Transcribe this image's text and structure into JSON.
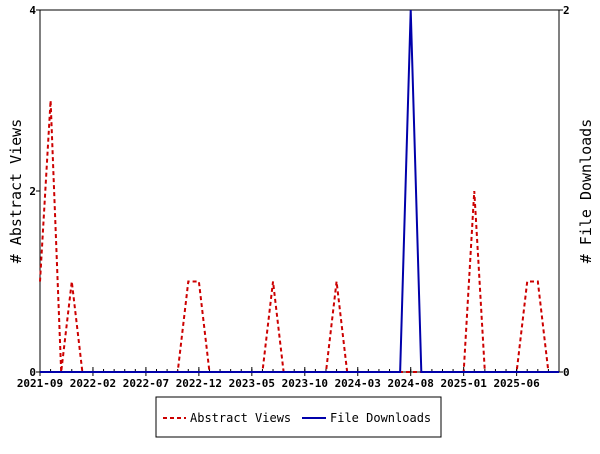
{
  "chart_data": {
    "type": "line",
    "x_labels": [
      "2021-09",
      "2022-02",
      "2022-07",
      "2022-12",
      "2023-05",
      "2023-10",
      "2024-03",
      "2024-08",
      "2025-01",
      "2025-06"
    ],
    "x_range": [
      "2021-09",
      "2025-10"
    ],
    "y_left": {
      "label": "# Abstract Views",
      "range": [
        0,
        4
      ],
      "ticks": [
        "0",
        "2",
        "4"
      ]
    },
    "y_right": {
      "label": "# File Downloads",
      "range": [
        0,
        2
      ],
      "ticks": [
        "0",
        "2"
      ]
    },
    "grid": false,
    "legend_position": "bottom-center",
    "series": [
      {
        "name": "Abstract Views",
        "axis": "left",
        "color": "#cc0000",
        "style": "dashed",
        "x": [
          "2021-09",
          "2021-10",
          "2021-11",
          "2021-12",
          "2022-01",
          "2022-02",
          "2022-03",
          "2022-04",
          "2022-05",
          "2022-06",
          "2022-07",
          "2022-08",
          "2022-09",
          "2022-10",
          "2022-11",
          "2022-12",
          "2023-01",
          "2023-02",
          "2023-03",
          "2023-04",
          "2023-05",
          "2023-06",
          "2023-07",
          "2023-08",
          "2023-09",
          "2023-10",
          "2023-11",
          "2023-12",
          "2024-01",
          "2024-02",
          "2024-03",
          "2024-04",
          "2024-05",
          "2024-06",
          "2024-07",
          "2024-08",
          "2024-09",
          "2024-10",
          "2024-11",
          "2024-12",
          "2025-01",
          "2025-02",
          "2025-03",
          "2025-04",
          "2025-05",
          "2025-06",
          "2025-07",
          "2025-08",
          "2025-09",
          "2025-10"
        ],
        "values": [
          1,
          3,
          0,
          1,
          0,
          0,
          0,
          0,
          0,
          0,
          0,
          0,
          0,
          0,
          1,
          1,
          0,
          0,
          0,
          0,
          0,
          0,
          1,
          0,
          0,
          0,
          0,
          0,
          1,
          0,
          0,
          0,
          0,
          0,
          0,
          0,
          0,
          0,
          0,
          0,
          0,
          2,
          0,
          0,
          0,
          0,
          1,
          1,
          0,
          0
        ]
      },
      {
        "name": "File Downloads",
        "axis": "right",
        "color": "#0000aa",
        "style": "solid",
        "x": [
          "2021-09",
          "2021-10",
          "2021-11",
          "2021-12",
          "2022-01",
          "2022-02",
          "2022-03",
          "2022-04",
          "2022-05",
          "2022-06",
          "2022-07",
          "2022-08",
          "2022-09",
          "2022-10",
          "2022-11",
          "2022-12",
          "2023-01",
          "2023-02",
          "2023-03",
          "2023-04",
          "2023-05",
          "2023-06",
          "2023-07",
          "2023-08",
          "2023-09",
          "2023-10",
          "2023-11",
          "2023-12",
          "2024-01",
          "2024-02",
          "2024-03",
          "2024-04",
          "2024-05",
          "2024-06",
          "2024-07",
          "2024-08",
          "2024-09",
          "2024-10",
          "2024-11",
          "2024-12",
          "2025-01",
          "2025-02",
          "2025-03",
          "2025-04",
          "2025-05",
          "2025-06",
          "2025-07",
          "2025-08",
          "2025-09",
          "2025-10"
        ],
        "values": [
          0,
          0,
          0,
          0,
          0,
          0,
          0,
          0,
          0,
          0,
          0,
          0,
          0,
          0,
          0,
          0,
          0,
          0,
          0,
          0,
          0,
          0,
          0,
          0,
          0,
          0,
          0,
          0,
          0,
          0,
          0,
          0,
          0,
          0,
          0,
          2,
          0,
          0,
          0,
          0,
          0,
          0,
          0,
          0,
          0,
          0,
          0,
          0,
          0,
          0
        ]
      }
    ]
  }
}
